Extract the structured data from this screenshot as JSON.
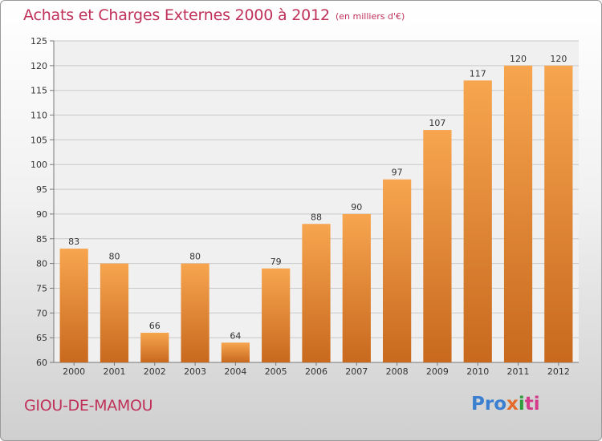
{
  "chart_data": {
    "type": "bar",
    "title": "Achats et Charges Externes 2000 à 2012",
    "subtitle": "(en milliers d'€)",
    "categories": [
      "2000",
      "2001",
      "2002",
      "2003",
      "2004",
      "2005",
      "2006",
      "2007",
      "2008",
      "2009",
      "2010",
      "2011",
      "2012"
    ],
    "values": [
      83,
      80,
      66,
      80,
      64,
      79,
      88,
      90,
      97,
      107,
      117,
      120,
      120
    ],
    "ylim": [
      60,
      125
    ],
    "yticks": [
      60,
      65,
      70,
      75,
      80,
      85,
      90,
      95,
      100,
      105,
      110,
      115,
      120,
      125
    ],
    "grid": true,
    "bar_color_top": "#f7a54f",
    "bar_color_bottom": "#c8691e"
  },
  "commune": "GIOU-DE-MAMOU",
  "logo": {
    "p1": "Pro",
    "p2": "x",
    "p3": "i",
    "p4": "ti"
  }
}
